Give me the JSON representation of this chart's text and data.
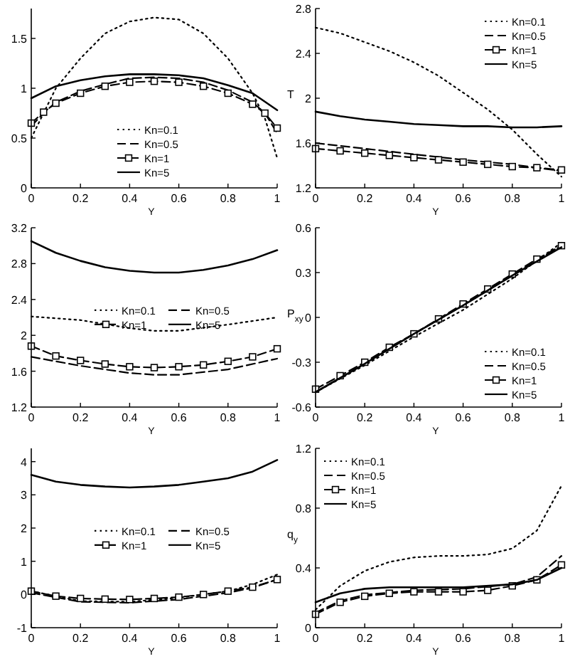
{
  "chart_data": [
    {
      "type": "line",
      "xlabel": "Y",
      "xlim": [
        0,
        1
      ],
      "xticks": [
        0,
        0.2,
        0.4,
        0.6,
        0.8,
        1
      ],
      "ylim": [
        0,
        1.8
      ],
      "yticks": [
        0,
        0.5,
        1,
        1.5
      ],
      "legend": "bottom",
      "series": [
        {
          "name": "Kn=0.1",
          "color": "#000000",
          "line_style": "dotted",
          "marker": "none",
          "x": [
            0,
            0.1,
            0.2,
            0.3,
            0.4,
            0.5,
            0.6,
            0.7,
            0.8,
            0.9,
            0.95,
            1
          ],
          "values": [
            0.5,
            1.0,
            1.3,
            1.55,
            1.67,
            1.71,
            1.69,
            1.55,
            1.3,
            0.95,
            0.7,
            0.3
          ]
        },
        {
          "name": "Kn=0.5",
          "color": "#000000",
          "line_style": "dashed",
          "marker": "none",
          "x": [
            0,
            0.05,
            0.1,
            0.2,
            0.3,
            0.4,
            0.5,
            0.6,
            0.7,
            0.8,
            0.9,
            0.95,
            1
          ],
          "values": [
            0.62,
            0.75,
            0.86,
            0.97,
            1.04,
            1.1,
            1.11,
            1.1,
            1.06,
            0.98,
            0.86,
            0.75,
            0.55
          ]
        },
        {
          "name": "Kn=1",
          "color": "#000000",
          "line_style": "dashed",
          "marker": "square",
          "x": [
            0,
            0.05,
            0.1,
            0.2,
            0.3,
            0.4,
            0.5,
            0.6,
            0.7,
            0.8,
            0.9,
            0.95,
            1
          ],
          "values": [
            0.65,
            0.76,
            0.85,
            0.95,
            1.02,
            1.06,
            1.07,
            1.06,
            1.02,
            0.95,
            0.84,
            0.75,
            0.6
          ]
        },
        {
          "name": "Kn=5",
          "color": "#000000",
          "line_style": "solid",
          "marker": "none",
          "x": [
            0,
            0.1,
            0.2,
            0.3,
            0.4,
            0.5,
            0.6,
            0.7,
            0.8,
            0.9,
            1
          ],
          "values": [
            0.9,
            1.02,
            1.08,
            1.12,
            1.14,
            1.14,
            1.13,
            1.1,
            1.03,
            0.95,
            0.78
          ]
        }
      ]
    },
    {
      "type": "line",
      "xlabel": "Y",
      "ylabel": "T",
      "xlim": [
        0,
        1
      ],
      "xticks": [
        0,
        0.2,
        0.4,
        0.6,
        0.8,
        1
      ],
      "ylim": [
        1.2,
        2.8
      ],
      "yticks": [
        1.2,
        1.6,
        2,
        2.4,
        2.8
      ],
      "legend": "top right",
      "series": [
        {
          "name": "Kn=0.1",
          "color": "#000000",
          "line_style": "dotted",
          "marker": "none",
          "x": [
            0,
            0.1,
            0.2,
            0.3,
            0.4,
            0.5,
            0.6,
            0.7,
            0.8,
            0.9,
            1
          ],
          "values": [
            2.63,
            2.58,
            2.5,
            2.42,
            2.32,
            2.2,
            2.05,
            1.9,
            1.72,
            1.5,
            1.3
          ]
        },
        {
          "name": "Kn=0.5",
          "color": "#000000",
          "line_style": "dashed",
          "marker": "none",
          "x": [
            0,
            0.2,
            0.4,
            0.6,
            0.8,
            1
          ],
          "values": [
            1.6,
            1.55,
            1.5,
            1.45,
            1.41,
            1.35
          ]
        },
        {
          "name": "Kn=1",
          "color": "#000000",
          "line_style": "dashed",
          "marker": "square",
          "x": [
            0,
            0.1,
            0.2,
            0.3,
            0.4,
            0.5,
            0.6,
            0.7,
            0.8,
            0.9,
            1
          ],
          "values": [
            1.55,
            1.53,
            1.51,
            1.49,
            1.47,
            1.45,
            1.43,
            1.41,
            1.39,
            1.38,
            1.36
          ]
        },
        {
          "name": "Kn=5",
          "color": "#000000",
          "line_style": "solid",
          "marker": "none",
          "x": [
            0,
            0.1,
            0.2,
            0.3,
            0.4,
            0.5,
            0.6,
            0.7,
            0.8,
            0.9,
            1
          ],
          "values": [
            1.88,
            1.84,
            1.81,
            1.79,
            1.77,
            1.76,
            1.75,
            1.75,
            1.74,
            1.74,
            1.75
          ]
        }
      ]
    },
    {
      "type": "line",
      "xlabel": "Y",
      "xlim": [
        0,
        1
      ],
      "xticks": [
        0,
        0.2,
        0.4,
        0.6,
        0.8,
        1
      ],
      "ylim": [
        1.2,
        3.2
      ],
      "yticks": [
        1.2,
        1.6,
        2,
        2.4,
        2.8,
        3.2
      ],
      "legend": "center",
      "series": [
        {
          "name": "Kn=0.1",
          "color": "#000000",
          "line_style": "dotted",
          "marker": "none",
          "x": [
            0,
            0.2,
            0.4,
            0.5,
            0.6,
            0.8,
            1
          ],
          "values": [
            2.21,
            2.17,
            2.08,
            2.05,
            2.05,
            2.12,
            2.2
          ]
        },
        {
          "name": "Kn=0.5",
          "color": "#000000",
          "line_style": "dashed",
          "marker": "none",
          "x": [
            0,
            0.2,
            0.4,
            0.5,
            0.6,
            0.8,
            1
          ],
          "values": [
            1.76,
            1.66,
            1.58,
            1.56,
            1.56,
            1.62,
            1.74
          ]
        },
        {
          "name": "Kn=1",
          "color": "#000000",
          "line_style": "dashed",
          "marker": "square",
          "x": [
            0,
            0.1,
            0.2,
            0.3,
            0.4,
            0.5,
            0.6,
            0.7,
            0.8,
            0.9,
            1
          ],
          "values": [
            1.88,
            1.77,
            1.72,
            1.68,
            1.65,
            1.64,
            1.65,
            1.67,
            1.71,
            1.76,
            1.85
          ]
        },
        {
          "name": "Kn=5",
          "color": "#000000",
          "line_style": "solid",
          "marker": "none",
          "x": [
            0,
            0.1,
            0.2,
            0.3,
            0.4,
            0.5,
            0.6,
            0.7,
            0.8,
            0.9,
            1
          ],
          "values": [
            3.05,
            2.92,
            2.83,
            2.76,
            2.72,
            2.7,
            2.7,
            2.73,
            2.78,
            2.85,
            2.95
          ]
        }
      ]
    },
    {
      "type": "line",
      "xlabel": "Y",
      "ylabel": "P$_{xy}$",
      "xlim": [
        0,
        1
      ],
      "xticks": [
        0,
        0.2,
        0.4,
        0.6,
        0.8,
        1
      ],
      "ylim": [
        -0.6,
        0.6
      ],
      "yticks": [
        -0.6,
        -0.3,
        0,
        0.3,
        0.6
      ],
      "legend": "bottom right",
      "series": [
        {
          "name": "Kn=0.1",
          "color": "#000000",
          "line_style": "dotted",
          "marker": "none",
          "x": [
            0,
            0.2,
            0.4,
            0.6,
            0.8,
            1
          ],
          "values": [
            -0.5,
            -0.32,
            -0.13,
            0.05,
            0.26,
            0.5
          ]
        },
        {
          "name": "Kn=0.5",
          "color": "#000000",
          "line_style": "dashed",
          "marker": "none",
          "x": [
            0,
            0.2,
            0.4,
            0.6,
            0.8,
            1
          ],
          "values": [
            -0.5,
            -0.31,
            -0.11,
            0.08,
            0.28,
            0.48
          ]
        },
        {
          "name": "Kn=1",
          "color": "#000000",
          "line_style": "dashed",
          "marker": "square",
          "x": [
            0,
            0.1,
            0.2,
            0.3,
            0.4,
            0.5,
            0.6,
            0.7,
            0.8,
            0.9,
            1
          ],
          "values": [
            -0.48,
            -0.39,
            -0.3,
            -0.2,
            -0.11,
            -0.01,
            0.09,
            0.19,
            0.29,
            0.39,
            0.48
          ]
        },
        {
          "name": "Kn=5",
          "color": "#000000",
          "line_style": "solid",
          "marker": "none",
          "x": [
            0,
            0.2,
            0.4,
            0.6,
            0.8,
            1
          ],
          "values": [
            -0.5,
            -0.31,
            -0.11,
            0.08,
            0.28,
            0.47
          ]
        }
      ]
    },
    {
      "type": "line",
      "xlabel": "Y",
      "xlim": [
        0,
        1
      ],
      "xticks": [
        0,
        0.2,
        0.4,
        0.6,
        0.8,
        1
      ],
      "ylim": [
        -1,
        4.4
      ],
      "yticks": [
        -1,
        0,
        1,
        2,
        3,
        4
      ],
      "legend": "center",
      "series": [
        {
          "name": "Kn=0.1",
          "color": "#000000",
          "line_style": "dotted",
          "marker": "none",
          "x": [
            0,
            0.2,
            0.4,
            0.6,
            0.8,
            0.9,
            1
          ],
          "values": [
            0.1,
            -0.2,
            -0.22,
            -0.1,
            0.1,
            0.3,
            0.6
          ]
        },
        {
          "name": "Kn=0.5",
          "color": "#000000",
          "line_style": "dashed",
          "marker": "none",
          "x": [
            0,
            0.2,
            0.4,
            0.6,
            0.8,
            0.9,
            1
          ],
          "values": [
            0.05,
            -0.22,
            -0.25,
            -0.15,
            0.05,
            0.2,
            0.45
          ]
        },
        {
          "name": "Kn=1",
          "color": "#000000",
          "line_style": "dashed",
          "marker": "square",
          "x": [
            0,
            0.1,
            0.2,
            0.3,
            0.4,
            0.5,
            0.6,
            0.7,
            0.8,
            0.9,
            1
          ],
          "values": [
            0.1,
            -0.05,
            -0.12,
            -0.14,
            -0.15,
            -0.12,
            -0.08,
            0,
            0.1,
            0.22,
            0.45
          ]
        },
        {
          "name": "Kn=5",
          "color": "#000000",
          "line_style": "solid",
          "marker": "none",
          "x": [
            0,
            0.1,
            0.2,
            0.3,
            0.4,
            0.5,
            0.6,
            0.7,
            0.8,
            0.9,
            1
          ],
          "values": [
            3.6,
            3.4,
            3.3,
            3.25,
            3.22,
            3.25,
            3.3,
            3.4,
            3.5,
            3.7,
            4.05
          ]
        }
      ]
    },
    {
      "type": "line",
      "xlabel": "Y",
      "ylabel": "q$_{y}$",
      "xlim": [
        0,
        1
      ],
      "xticks": [
        0,
        0.2,
        0.4,
        0.6,
        0.8,
        1
      ],
      "ylim": [
        0,
        1.2
      ],
      "yticks": [
        0,
        0.4,
        0.8,
        1.2
      ],
      "legend": "top left",
      "series": [
        {
          "name": "Kn=0.1",
          "color": "#000000",
          "line_style": "dotted",
          "marker": "none",
          "x": [
            0,
            0.1,
            0.2,
            0.3,
            0.4,
            0.5,
            0.6,
            0.7,
            0.8,
            0.9,
            1
          ],
          "values": [
            0.12,
            0.28,
            0.38,
            0.44,
            0.47,
            0.48,
            0.48,
            0.49,
            0.53,
            0.65,
            0.95
          ]
        },
        {
          "name": "Kn=0.5",
          "color": "#000000",
          "line_style": "dashed",
          "marker": "none",
          "x": [
            0,
            0.1,
            0.2,
            0.4,
            0.6,
            0.8,
            0.9,
            1
          ],
          "values": [
            0.1,
            0.18,
            0.22,
            0.25,
            0.26,
            0.29,
            0.34,
            0.48
          ]
        },
        {
          "name": "Kn=1",
          "color": "#000000",
          "line_style": "dashed",
          "marker": "square",
          "x": [
            0,
            0.1,
            0.2,
            0.3,
            0.4,
            0.5,
            0.6,
            0.7,
            0.8,
            0.9,
            1
          ],
          "values": [
            0.09,
            0.17,
            0.21,
            0.23,
            0.24,
            0.24,
            0.24,
            0.25,
            0.28,
            0.32,
            0.42
          ]
        },
        {
          "name": "Kn=5",
          "color": "#000000",
          "line_style": "solid",
          "marker": "none",
          "x": [
            0,
            0.1,
            0.2,
            0.3,
            0.4,
            0.6,
            0.8,
            0.9,
            1
          ],
          "values": [
            0.17,
            0.23,
            0.26,
            0.27,
            0.27,
            0.27,
            0.29,
            0.32,
            0.4
          ]
        }
      ]
    }
  ]
}
